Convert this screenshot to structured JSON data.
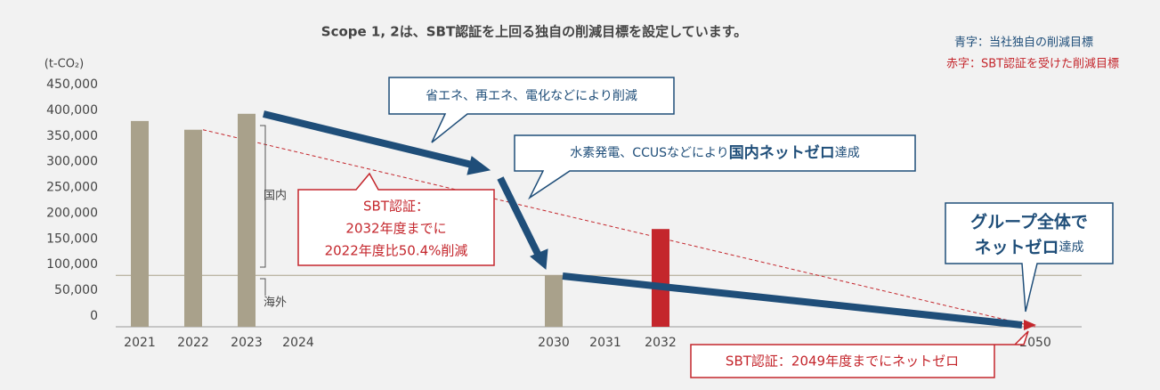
{
  "chart_data": {
    "type": "bar",
    "title": "Scope 1, 2は、SBT認証を上回る独自の削減目標を設定しています。",
    "y_unit": "(t-CO₂)",
    "legend_texts": {
      "blue": "青字：当社独自の削減目標",
      "red": "赤字：SBT認証を受けた削減目標"
    },
    "categories": [
      "2021",
      "2022",
      "2023",
      "2024",
      "2030",
      "2031",
      "2032",
      "2050"
    ],
    "values": [
      400000,
      383000,
      414000,
      null,
      100000,
      null,
      190000,
      null
    ],
    "colors": [
      "#a9a18b",
      "#a9a18b",
      "#a9a18b",
      "#a9a18b",
      "#a9a18b",
      "#a9a18b",
      "#c4262c",
      "#a9a18b"
    ],
    "ylim": [
      0,
      450000
    ],
    "yticks": [
      0,
      {
        "value": 50000,
        "label": "50,000"
      },
      {
        "value": 100000,
        "label": "100,000"
      },
      {
        "value": 150000,
        "label": "150,000"
      },
      {
        "value": 200000,
        "label": "200,000"
      },
      {
        "value": 250000,
        "label": "250,000"
      },
      {
        "value": 300000,
        "label": "300,000"
      },
      {
        "value": 350000,
        "label": "350,000"
      },
      {
        "value": 400000,
        "label": "400,000"
      },
      {
        "value": 450000,
        "label": "450,000"
      }
    ],
    "annotations": {
      "domestic": "国内",
      "overseas": "海外",
      "callout1": "省エネ、再エネ、電化などにより削減",
      "callout2": [
        "水素発電、CCUSなどにより",
        "国内ネットゼロ",
        "達成"
      ],
      "callout3": [
        "グループ全体で",
        "ネットゼロ",
        "達成"
      ],
      "sbt1": [
        "SBT認証：",
        "2032年度までに",
        "2022年度比50.4%削減"
      ],
      "sbt2": "SBT認証：2049年度までにネットゼロ"
    }
  }
}
